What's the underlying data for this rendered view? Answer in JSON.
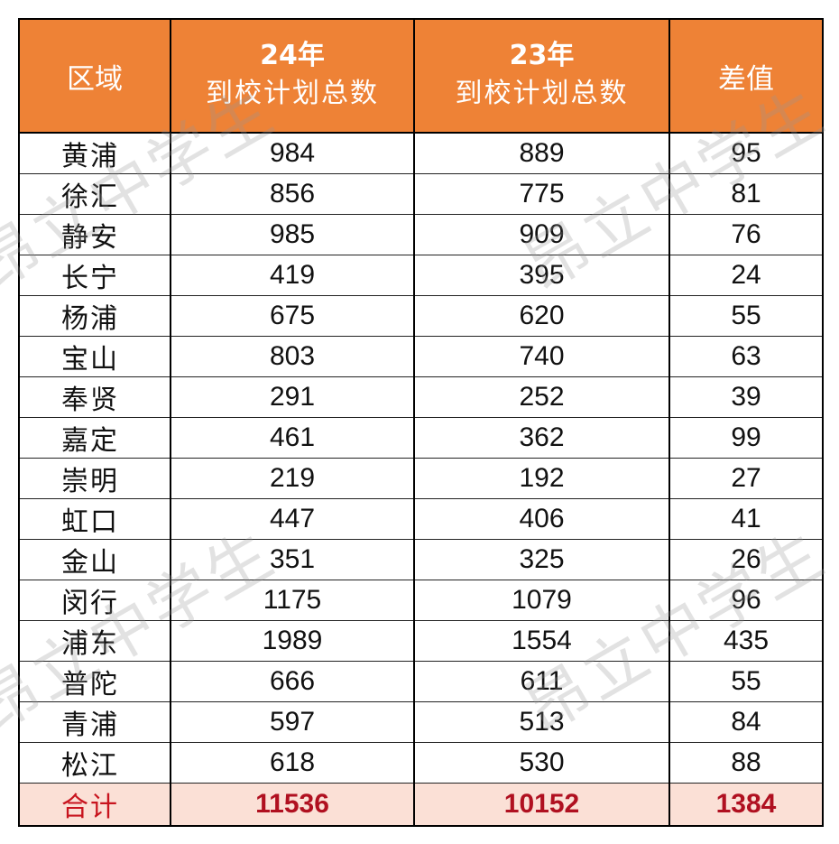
{
  "table": {
    "headers": {
      "region": "区域",
      "y24_year": "24年",
      "y24_sub": "到校计划总数",
      "y23_year": "23年",
      "y23_sub": "到校计划总数",
      "diff": "差值"
    },
    "rows": [
      {
        "region": "黄浦",
        "y24": "984",
        "y23": "889",
        "diff": "95"
      },
      {
        "region": "徐汇",
        "y24": "856",
        "y23": "775",
        "diff": "81"
      },
      {
        "region": "静安",
        "y24": "985",
        "y23": "909",
        "diff": "76"
      },
      {
        "region": "长宁",
        "y24": "419",
        "y23": "395",
        "diff": "24"
      },
      {
        "region": "杨浦",
        "y24": "675",
        "y23": "620",
        "diff": "55"
      },
      {
        "region": "宝山",
        "y24": "803",
        "y23": "740",
        "diff": "63"
      },
      {
        "region": "奉贤",
        "y24": "291",
        "y23": "252",
        "diff": "39"
      },
      {
        "region": "嘉定",
        "y24": "461",
        "y23": "362",
        "diff": "99"
      },
      {
        "region": "崇明",
        "y24": "219",
        "y23": "192",
        "diff": "27"
      },
      {
        "region": "虹口",
        "y24": "447",
        "y23": "406",
        "diff": "41"
      },
      {
        "region": "金山",
        "y24": "351",
        "y23": "325",
        "diff": "26"
      },
      {
        "region": "闵行",
        "y24": "1175",
        "y23": "1079",
        "diff": "96"
      },
      {
        "region": "浦东",
        "y24": "1989",
        "y23": "1554",
        "diff": "435"
      },
      {
        "region": "普陀",
        "y24": "666",
        "y23": "611",
        "diff": "55"
      },
      {
        "region": "青浦",
        "y24": "597",
        "y23": "513",
        "diff": "84"
      },
      {
        "region": "松江",
        "y24": "618",
        "y23": "530",
        "diff": "88"
      }
    ],
    "total": {
      "label": "合计",
      "y24": "11536",
      "y23": "10152",
      "diff": "1384"
    }
  },
  "watermark": {
    "text": "昂立中学生"
  },
  "colors": {
    "header_bg": "#ee8236",
    "header_text": "#ffffff",
    "total_bg": "#fbe0d6",
    "total_text": "#b01020"
  }
}
